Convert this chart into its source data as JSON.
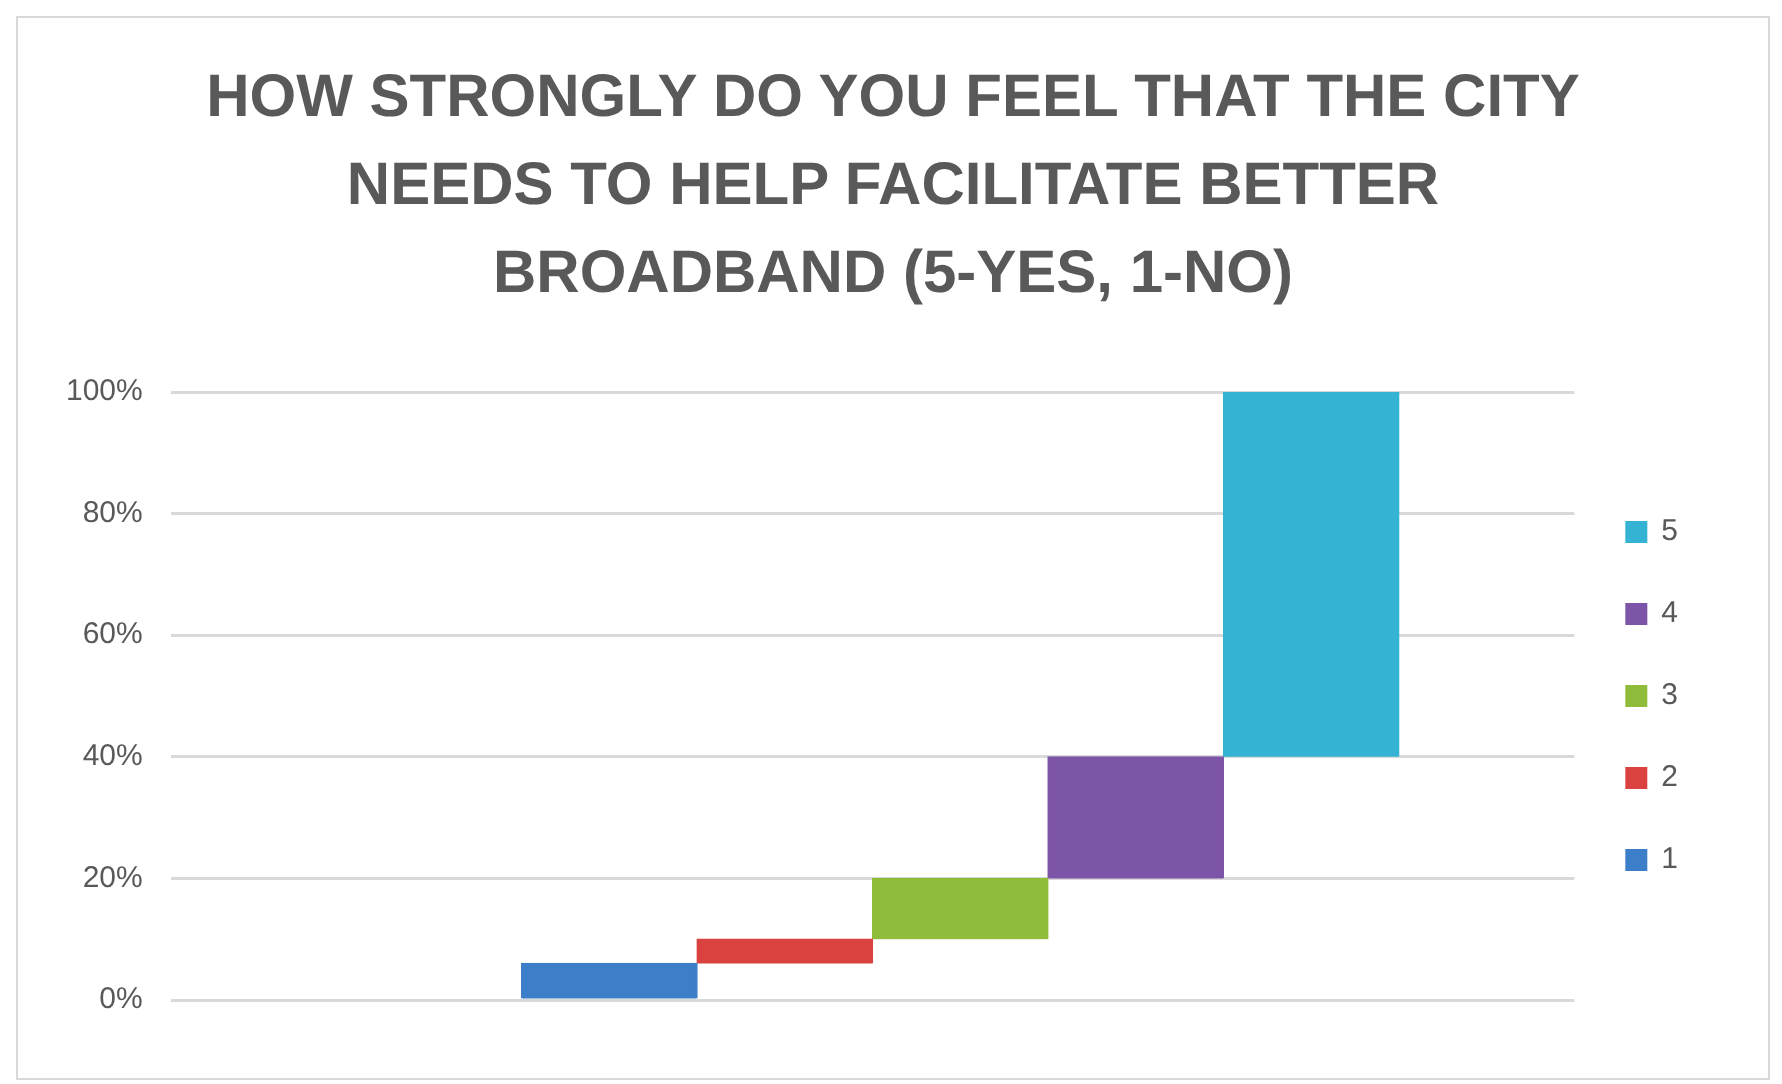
{
  "chart_data": {
    "type": "bar",
    "title": "HOW STRONGLY DO YOU FEEL THAT THE CITY NEEDS TO HELP FACILITATE BETTER BROADBAND (5-YES, 1-NO)",
    "categories": [
      null,
      null,
      null,
      null,
      null,
      null,
      null,
      null
    ],
    "series": [
      {
        "name": "1",
        "color": "#3c7fc8",
        "values": [
          null,
          null,
          6,
          null,
          null,
          null,
          null,
          null
        ],
        "base": [
          null,
          null,
          0,
          null,
          null,
          null,
          null,
          null
        ]
      },
      {
        "name": "2",
        "color": "#d9423f",
        "values": [
          null,
          null,
          null,
          4,
          null,
          null,
          null,
          null
        ],
        "base": [
          null,
          null,
          null,
          6,
          null,
          null,
          null,
          null
        ]
      },
      {
        "name": "3",
        "color": "#8fbc3a",
        "values": [
          null,
          null,
          null,
          null,
          10,
          null,
          null,
          null
        ],
        "base": [
          null,
          null,
          null,
          null,
          10,
          null,
          null,
          null
        ]
      },
      {
        "name": "4",
        "color": "#7d55a8",
        "values": [
          null,
          null,
          null,
          null,
          null,
          20,
          null,
          null
        ],
        "base": [
          null,
          null,
          null,
          null,
          null,
          20,
          null,
          null
        ]
      },
      {
        "name": "5",
        "color": "#34b3d3",
        "values": [
          null,
          null,
          null,
          null,
          null,
          null,
          60,
          null
        ],
        "base": [
          null,
          null,
          null,
          null,
          null,
          null,
          40,
          null
        ]
      }
    ],
    "ylim": [
      0,
      100
    ],
    "yticks": [
      {
        "value": 0,
        "label": "0%"
      },
      {
        "value": 20,
        "label": "20%"
      },
      {
        "value": 40,
        "label": "40%"
      },
      {
        "value": 60,
        "label": "60%"
      },
      {
        "value": 80,
        "label": "80%"
      },
      {
        "value": 100,
        "label": "100%"
      }
    ],
    "grid": "y",
    "legend": "right"
  }
}
